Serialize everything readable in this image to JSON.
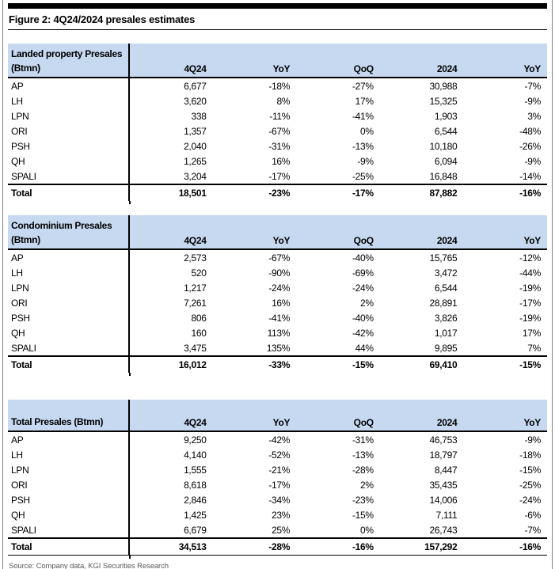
{
  "figure": {
    "title": "Figure 2: 4Q24/2024 presales estimates",
    "source": "Source: Company data, KGI Securities Research"
  },
  "colors": {
    "header_bg": "#c6d9f1",
    "rule": "#000000",
    "source_text": "#595959"
  },
  "tables": [
    {
      "id": "landed-property-presales",
      "label_lines": [
        "Landed property Presales",
        "(Btmn)"
      ],
      "columns": [
        "4Q24",
        "YoY",
        "QoQ",
        "2024",
        "YoY"
      ],
      "rows": [
        {
          "name": "AP",
          "values": [
            "6,677",
            "-18%",
            "-27%",
            "30,988",
            "-7%"
          ]
        },
        {
          "name": "LH",
          "values": [
            "3,620",
            "8%",
            "17%",
            "15,325",
            "-9%"
          ]
        },
        {
          "name": "LPN",
          "values": [
            "338",
            "-11%",
            "-41%",
            "1,903",
            "3%"
          ]
        },
        {
          "name": "ORI",
          "values": [
            "1,357",
            "-67%",
            "0%",
            "6,544",
            "-48%"
          ]
        },
        {
          "name": "PSH",
          "values": [
            "2,040",
            "-31%",
            "-13%",
            "10,180",
            "-26%"
          ]
        },
        {
          "name": "QH",
          "values": [
            "1,265",
            "16%",
            "-9%",
            "6,094",
            "-9%"
          ]
        },
        {
          "name": "SPALI",
          "values": [
            "3,204",
            "-17%",
            "-25%",
            "16,848",
            "-14%"
          ]
        }
      ],
      "total": {
        "name": "Total",
        "values": [
          "18,501",
          "-23%",
          "-17%",
          "87,882",
          "-16%"
        ]
      },
      "bottom_rule": false
    },
    {
      "id": "condominium-presales",
      "label_lines": [
        "Condominium Presales",
        "(Btmn)"
      ],
      "columns": [
        "4Q24",
        "YoY",
        "QoQ",
        "2024",
        "YoY"
      ],
      "rows": [
        {
          "name": "AP",
          "values": [
            "2,573",
            "-67%",
            "-40%",
            "15,765",
            "-12%"
          ]
        },
        {
          "name": "LH",
          "values": [
            "520",
            "-90%",
            "-69%",
            "3,472",
            "-44%"
          ]
        },
        {
          "name": "LPN",
          "values": [
            "1,217",
            "-24%",
            "-24%",
            "6,544",
            "-19%"
          ]
        },
        {
          "name": "ORI",
          "values": [
            "7,261",
            "16%",
            "2%",
            "28,891",
            "-17%"
          ]
        },
        {
          "name": "PSH",
          "values": [
            "806",
            "-41%",
            "-40%",
            "3,826",
            "-19%"
          ]
        },
        {
          "name": "QH",
          "values": [
            "160",
            "113%",
            "-42%",
            "1,017",
            "17%"
          ]
        },
        {
          "name": "SPALI",
          "values": [
            "3,475",
            "135%",
            "44%",
            "9,895",
            "7%"
          ]
        }
      ],
      "total": {
        "name": "Total",
        "values": [
          "16,012",
          "-33%",
          "-15%",
          "69,410",
          "-15%"
        ]
      },
      "bottom_rule": false
    },
    {
      "id": "total-presales",
      "label_lines": [
        "Total Presales (Btmn)"
      ],
      "columns": [
        "4Q24",
        "YoY",
        "QoQ",
        "2024",
        "YoY"
      ],
      "rows": [
        {
          "name": "AP",
          "values": [
            "9,250",
            "-42%",
            "-31%",
            "46,753",
            "-9%"
          ]
        },
        {
          "name": "LH",
          "values": [
            "4,140",
            "-52%",
            "-13%",
            "18,797",
            "-18%"
          ]
        },
        {
          "name": "LPN",
          "values": [
            "1,555",
            "-21%",
            "-28%",
            "8,447",
            "-15%"
          ]
        },
        {
          "name": "ORI",
          "values": [
            "8,618",
            "-17%",
            "2%",
            "35,435",
            "-25%"
          ]
        },
        {
          "name": "PSH",
          "values": [
            "2,846",
            "-34%",
            "-23%",
            "14,006",
            "-24%"
          ]
        },
        {
          "name": "QH",
          "values": [
            "1,425",
            "23%",
            "-15%",
            "7,111",
            "-6%"
          ]
        },
        {
          "name": "SPALI",
          "values": [
            "6,679",
            "25%",
            "0%",
            "26,743",
            "-7%"
          ]
        }
      ],
      "total": {
        "name": "Total",
        "values": [
          "34,513",
          "-28%",
          "-16%",
          "157,292",
          "-16%"
        ]
      },
      "bottom_rule": true
    }
  ]
}
